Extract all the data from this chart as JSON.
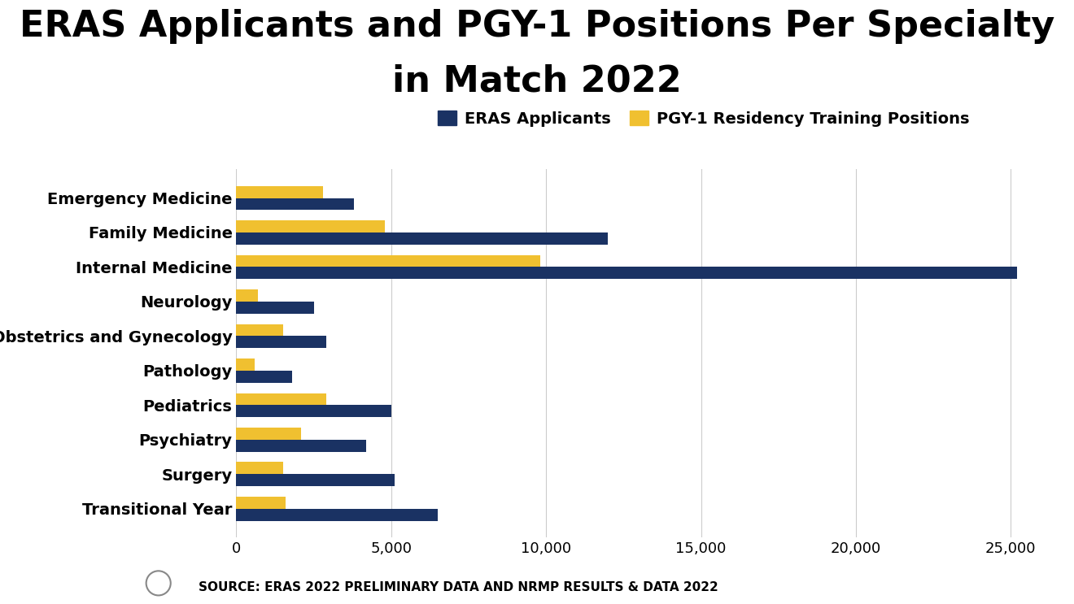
{
  "title_line1": "ERAS Applicants and PGY-1 Positions Per Specialty",
  "title_line2": "in Match 2022",
  "specialties": [
    "Emergency Medicine",
    "Family Medicine",
    "Internal Medicine",
    "Neurology",
    "Obstetrics and Gynecology",
    "Pathology",
    "Pediatrics",
    "Psychiatry",
    "Surgery",
    "Transitional Year"
  ],
  "eras_applicants": [
    3800,
    12000,
    25200,
    2500,
    2900,
    1800,
    5000,
    4200,
    5100,
    6500
  ],
  "pgy1_positions": [
    2800,
    4800,
    9800,
    700,
    1500,
    600,
    2900,
    2100,
    1500,
    1600
  ],
  "eras_color": "#1a3263",
  "pgy1_color": "#f0c030",
  "legend_eras": "ERAS Applicants",
  "legend_pgy1": "PGY-1 Residency Training Positions",
  "xlim": [
    0,
    26000
  ],
  "xticks": [
    0,
    5000,
    10000,
    15000,
    20000,
    25000
  ],
  "source_text": "SOURCE: ERAS 2022 PRELIMINARY DATA AND NRMP RESULTS & DATA 2022",
  "background_color": "#ffffff",
  "bar_height": 0.35,
  "title_fontsize": 32,
  "label_fontsize": 14,
  "tick_fontsize": 13,
  "legend_fontsize": 14,
  "source_fontsize": 11
}
